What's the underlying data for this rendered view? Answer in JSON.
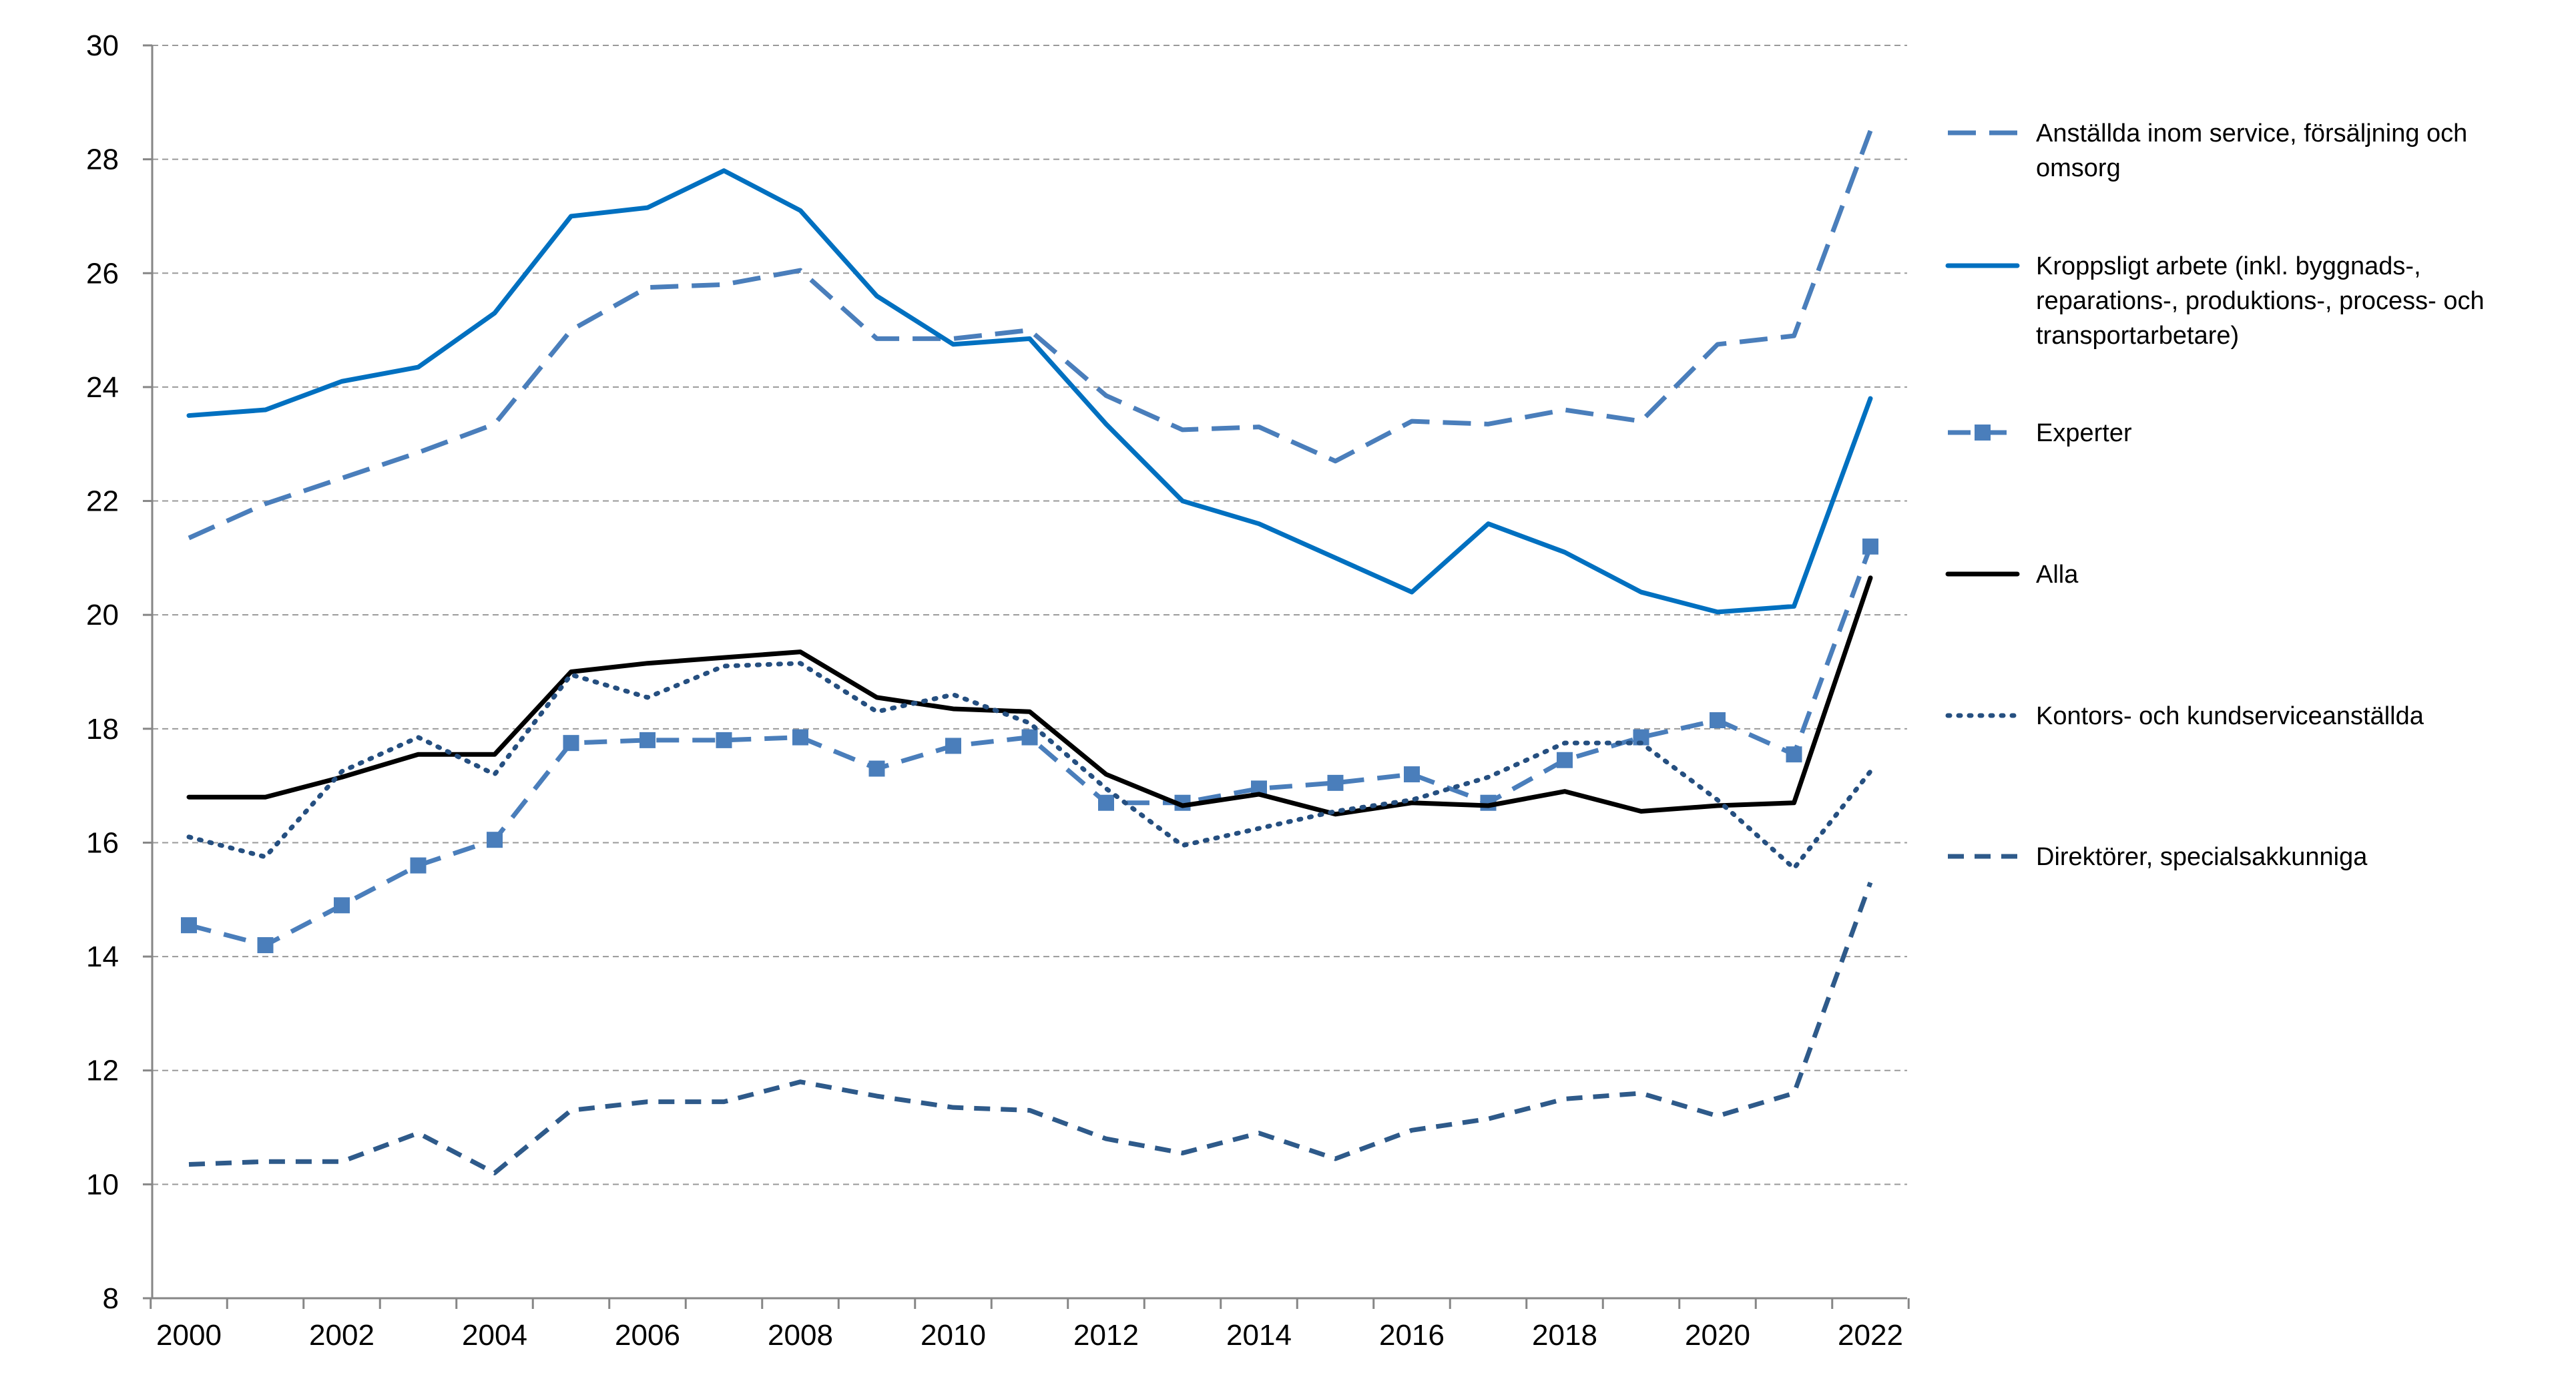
{
  "chart_data": {
    "type": "line",
    "title": "",
    "xlabel": "",
    "ylabel": "",
    "x": [
      2000,
      2001,
      2002,
      2003,
      2004,
      2005,
      2006,
      2007,
      2008,
      2009,
      2010,
      2011,
      2012,
      2013,
      2014,
      2015,
      2016,
      2017,
      2018,
      2019,
      2020,
      2021,
      2022
    ],
    "xlim": [
      2000,
      2022
    ],
    "ylim": [
      8,
      30
    ],
    "x_ticks": [
      "2000",
      "2002",
      "2004",
      "2006",
      "2008",
      "2010",
      "2012",
      "2014",
      "2016",
      "2018",
      "2020",
      "2022"
    ],
    "y_ticks": [
      "8",
      "10",
      "12",
      "14",
      "16",
      "18",
      "20",
      "22",
      "24",
      "26",
      "28",
      "30"
    ],
    "grid": "horizontal dashed",
    "legend_position": "right",
    "series": [
      {
        "name": "Anställda inom service, försäljning och omsorg",
        "label_lines": [
          "Anställda inom service, försäljning och",
          "omsorg"
        ],
        "color": "#4a7ebb",
        "style": "long-dash",
        "marker": "none",
        "values": [
          21.35,
          21.95,
          22.4,
          22.85,
          23.35,
          25.0,
          25.75,
          25.8,
          26.05,
          24.85,
          24.85,
          25.0,
          23.85,
          23.25,
          23.3,
          22.7,
          23.4,
          23.35,
          23.6,
          23.4,
          24.75,
          24.9,
          28.5
        ]
      },
      {
        "name": "Kroppsligt arbete (inkl. byggnads-, reparations-, produktions-, process- och transportarbetare)",
        "label_lines": [
          "Kroppsligt arbete (inkl. byggnads-,",
          "reparations-, produktions-, process- och",
          "transportarbetare)"
        ],
        "color": "#0070c0",
        "style": "solid",
        "marker": "none",
        "values": [
          23.5,
          23.6,
          24.1,
          24.35,
          25.3,
          27.0,
          27.15,
          27.8,
          27.1,
          25.6,
          24.75,
          24.85,
          23.35,
          22.0,
          21.6,
          21.0,
          20.4,
          21.6,
          21.1,
          20.4,
          20.05,
          20.15,
          23.8
        ]
      },
      {
        "name": "Experter",
        "label_lines": [
          "Experter"
        ],
        "color": "#4a7ebb",
        "style": "dash",
        "marker": "square",
        "values": [
          14.55,
          14.2,
          14.9,
          15.6,
          16.05,
          17.75,
          17.8,
          17.8,
          17.85,
          17.3,
          17.7,
          17.85,
          16.7,
          16.7,
          16.95,
          17.05,
          17.2,
          16.7,
          17.45,
          17.85,
          18.15,
          17.55,
          21.2
        ]
      },
      {
        "name": "Alla",
        "label_lines": [
          "Alla"
        ],
        "color": "#000000",
        "style": "solid",
        "marker": "none",
        "values": [
          16.8,
          16.8,
          17.15,
          17.55,
          17.55,
          19.0,
          19.15,
          19.25,
          19.35,
          18.55,
          18.35,
          18.3,
          17.2,
          16.65,
          16.85,
          16.5,
          16.7,
          16.65,
          16.9,
          16.55,
          16.65,
          16.7,
          20.65
        ]
      },
      {
        "name": "Kontors- och kundserviceanställda",
        "label_lines": [
          "Kontors- och kundserviceanställda"
        ],
        "color": "#254f80",
        "style": "dotted",
        "marker": "none",
        "values": [
          16.1,
          15.75,
          17.25,
          17.85,
          17.2,
          18.95,
          18.55,
          19.1,
          19.15,
          18.3,
          18.6,
          18.1,
          16.95,
          15.95,
          16.25,
          16.55,
          16.75,
          17.15,
          17.75,
          17.75,
          16.75,
          15.55,
          17.25
        ]
      },
      {
        "name": "Direktörer, specialsakkunniga",
        "label_lines": [
          "Direktörer, specialsakkunniga"
        ],
        "color": "#2e5a8a",
        "style": "short-dash",
        "marker": "none",
        "values": [
          10.35,
          10.4,
          10.4,
          10.9,
          10.2,
          11.3,
          11.45,
          11.45,
          11.8,
          11.55,
          11.35,
          11.3,
          10.8,
          10.55,
          10.9,
          10.45,
          10.95,
          11.15,
          11.5,
          11.6,
          11.2,
          11.6,
          15.3
        ]
      }
    ]
  }
}
